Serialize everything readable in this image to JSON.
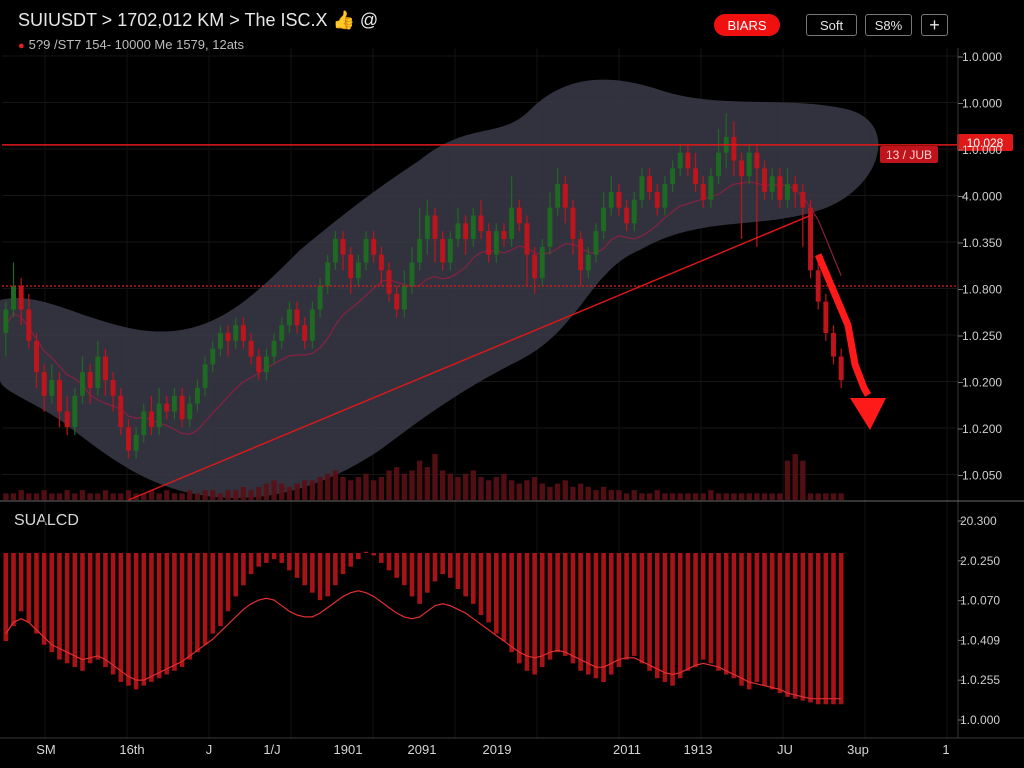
{
  "header": {
    "title": "SUIUSDT > 1702,012 KM > The ISC.X 👍 @",
    "subtitle": "5?9 /ST7 154- 10000 Me 1579, 12ats"
  },
  "toolbar": {
    "bears_label": "BIARS",
    "soft_label": "Soft",
    "pct_label": "S8%",
    "plus_label": "+"
  },
  "indicator": {
    "label": "SUALCD"
  },
  "colors": {
    "background": "#000000",
    "bear": "#c0141c",
    "bull": "#1f6a22",
    "resistance": "#e01818",
    "zone": "#3a3b48",
    "arrow": "#ff1a1a",
    "ma": "#8a2040"
  },
  "level_tags": {
    "left": "13 / JUB",
    "right": "10.028"
  },
  "chart_data": {
    "type": "candlestick",
    "price_axis": {
      "ticks": [
        "1.0.000",
        "1.0.000",
        "1.0.000",
        "4.0.000",
        "1.0.350",
        "1.0.800",
        "1.0.250",
        "1.0.200",
        "1.0.200",
        "1.0.050"
      ],
      "ylim": [
        0,
        100
      ]
    },
    "indicator_axis": {
      "ticks": [
        "20.300",
        "2.0.250",
        "1.0.070",
        "1.0.409",
        "1.0.255",
        "1.0.000"
      ],
      "ylim": [
        0,
        100
      ]
    },
    "x_ticks": [
      "SM",
      "16th",
      "J",
      "1/J",
      "1901",
      "2091",
      "2019",
      "2011",
      "1913",
      "JU",
      "3up",
      "1"
    ],
    "resistance_level": 86,
    "support_level": 50,
    "candles": [
      [
        38,
        44,
        32,
        46
      ],
      [
        44,
        50,
        42,
        56
      ],
      [
        50,
        44,
        40,
        52
      ],
      [
        44,
        36,
        34,
        48
      ],
      [
        36,
        28,
        24,
        38
      ],
      [
        28,
        22,
        18,
        30
      ],
      [
        22,
        26,
        20,
        30
      ],
      [
        26,
        18,
        14,
        28
      ],
      [
        18,
        14,
        12,
        22
      ],
      [
        14,
        22,
        12,
        24
      ],
      [
        22,
        28,
        20,
        32
      ],
      [
        28,
        24,
        20,
        30
      ],
      [
        24,
        32,
        22,
        36
      ],
      [
        32,
        26,
        22,
        34
      ],
      [
        26,
        22,
        18,
        28
      ],
      [
        22,
        14,
        12,
        24
      ],
      [
        14,
        8,
        6,
        16
      ],
      [
        8,
        12,
        6,
        14
      ],
      [
        12,
        18,
        10,
        20
      ],
      [
        18,
        14,
        12,
        22
      ],
      [
        14,
        20,
        12,
        24
      ],
      [
        20,
        18,
        16,
        22
      ],
      [
        18,
        22,
        16,
        24
      ],
      [
        22,
        16,
        14,
        24
      ],
      [
        16,
        20,
        14,
        22
      ],
      [
        20,
        24,
        18,
        26
      ],
      [
        24,
        30,
        22,
        32
      ],
      [
        30,
        34,
        28,
        36
      ],
      [
        34,
        38,
        32,
        40
      ],
      [
        38,
        36,
        32,
        40
      ],
      [
        36,
        40,
        34,
        42
      ],
      [
        40,
        36,
        34,
        42
      ],
      [
        36,
        32,
        30,
        38
      ],
      [
        32,
        28,
        26,
        34
      ],
      [
        28,
        32,
        26,
        34
      ],
      [
        32,
        36,
        30,
        38
      ],
      [
        36,
        40,
        34,
        42
      ],
      [
        40,
        44,
        38,
        46
      ],
      [
        44,
        40,
        38,
        46
      ],
      [
        40,
        36,
        34,
        42
      ],
      [
        36,
        44,
        34,
        46
      ],
      [
        44,
        50,
        42,
        52
      ],
      [
        50,
        56,
        48,
        58
      ],
      [
        56,
        62,
        54,
        64
      ],
      [
        62,
        58,
        54,
        64
      ],
      [
        58,
        52,
        48,
        60
      ],
      [
        52,
        56,
        50,
        58
      ],
      [
        56,
        62,
        54,
        64
      ],
      [
        62,
        58,
        56,
        64
      ],
      [
        58,
        54,
        50,
        60
      ],
      [
        54,
        48,
        46,
        56
      ],
      [
        48,
        44,
        42,
        50
      ],
      [
        44,
        50,
        42,
        54
      ],
      [
        50,
        56,
        48,
        60
      ],
      [
        56,
        62,
        54,
        70
      ],
      [
        62,
        68,
        58,
        72
      ],
      [
        68,
        62,
        56,
        70
      ],
      [
        62,
        56,
        54,
        64
      ],
      [
        56,
        62,
        54,
        64
      ],
      [
        62,
        66,
        60,
        70
      ],
      [
        66,
        62,
        58,
        68
      ],
      [
        62,
        68,
        60,
        70
      ],
      [
        68,
        64,
        62,
        72
      ],
      [
        64,
        58,
        56,
        66
      ],
      [
        58,
        64,
        56,
        66
      ],
      [
        64,
        62,
        60,
        66
      ],
      [
        62,
        70,
        60,
        78
      ],
      [
        70,
        66,
        64,
        72
      ],
      [
        66,
        58,
        50,
        68
      ],
      [
        58,
        52,
        48,
        60
      ],
      [
        52,
        60,
        50,
        62
      ],
      [
        60,
        70,
        58,
        74
      ],
      [
        70,
        76,
        68,
        80
      ],
      [
        76,
        70,
        66,
        78
      ],
      [
        70,
        62,
        58,
        72
      ],
      [
        62,
        54,
        50,
        64
      ],
      [
        54,
        58,
        52,
        60
      ],
      [
        58,
        64,
        56,
        66
      ],
      [
        64,
        70,
        62,
        74
      ],
      [
        70,
        74,
        68,
        78
      ],
      [
        74,
        70,
        68,
        76
      ],
      [
        70,
        66,
        64,
        72
      ],
      [
        66,
        72,
        64,
        74
      ],
      [
        72,
        78,
        70,
        80
      ],
      [
        78,
        74,
        72,
        80
      ],
      [
        74,
        70,
        68,
        76
      ],
      [
        70,
        76,
        68,
        78
      ],
      [
        76,
        80,
        74,
        82
      ],
      [
        80,
        84,
        78,
        86
      ],
      [
        84,
        80,
        78,
        86
      ],
      [
        80,
        76,
        74,
        84
      ],
      [
        76,
        72,
        70,
        78
      ],
      [
        72,
        78,
        70,
        80
      ],
      [
        78,
        84,
        76,
        90
      ],
      [
        84,
        88,
        80,
        94
      ],
      [
        88,
        82,
        78,
        92
      ],
      [
        82,
        78,
        62,
        84
      ],
      [
        78,
        84,
        76,
        86
      ],
      [
        84,
        80,
        60,
        86
      ],
      [
        80,
        74,
        72,
        82
      ],
      [
        74,
        78,
        72,
        80
      ],
      [
        78,
        72,
        70,
        80
      ],
      [
        72,
        76,
        70,
        80
      ],
      [
        76,
        74,
        70,
        78
      ],
      [
        74,
        70,
        60,
        76
      ],
      [
        70,
        54,
        52,
        72
      ],
      [
        54,
        46,
        44,
        56
      ],
      [
        46,
        38,
        36,
        48
      ],
      [
        38,
        32,
        30,
        40
      ],
      [
        32,
        26,
        24,
        34
      ]
    ],
    "volume": [
      2,
      2,
      3,
      2,
      2,
      3,
      2,
      2,
      3,
      2,
      3,
      2,
      2,
      3,
      2,
      2,
      3,
      2,
      2,
      3,
      2,
      3,
      2,
      2,
      3,
      2,
      3,
      3,
      2,
      3,
      3,
      4,
      3,
      4,
      5,
      6,
      5,
      4,
      5,
      6,
      6,
      7,
      8,
      9,
      7,
      6,
      7,
      8,
      6,
      7,
      9,
      10,
      8,
      9,
      12,
      10,
      14,
      9,
      8,
      7,
      8,
      9,
      7,
      6,
      7,
      8,
      6,
      5,
      6,
      7,
      5,
      4,
      5,
      6,
      4,
      5,
      4,
      3,
      4,
      3,
      3,
      2,
      3,
      2,
      2,
      3,
      2,
      2,
      2,
      2,
      2,
      2,
      3,
      2,
      2,
      2,
      2,
      2,
      2,
      2,
      2,
      2,
      12,
      14,
      12,
      2,
      2,
      2,
      2,
      2
    ],
    "histogram": [
      36,
      44,
      52,
      46,
      40,
      34,
      30,
      26,
      24,
      22,
      20,
      24,
      26,
      22,
      18,
      14,
      12,
      10,
      12,
      14,
      16,
      18,
      20,
      22,
      26,
      30,
      34,
      40,
      44,
      52,
      60,
      66,
      72,
      76,
      78,
      80,
      78,
      74,
      70,
      66,
      62,
      58,
      60,
      66,
      72,
      76,
      80,
      84,
      82,
      78,
      74,
      70,
      66,
      60,
      56,
      62,
      68,
      72,
      70,
      64,
      60,
      56,
      50,
      46,
      40,
      36,
      30,
      24,
      20,
      18,
      22,
      26,
      30,
      28,
      24,
      20,
      18,
      16,
      14,
      18,
      22,
      26,
      28,
      24,
      20,
      16,
      14,
      12,
      16,
      20,
      22,
      26,
      24,
      20,
      18,
      16,
      12,
      10,
      14,
      12,
      10,
      8,
      6,
      5,
      4,
      3,
      2,
      2,
      2,
      2
    ],
    "signal": [
      40,
      46,
      48,
      46,
      42,
      38,
      34,
      32,
      30,
      28,
      26,
      27,
      28,
      26,
      23,
      20,
      17,
      15,
      15,
      17,
      19,
      21,
      23,
      25,
      28,
      31,
      34,
      37,
      41,
      45,
      49,
      53,
      56,
      58,
      59,
      58,
      55,
      52,
      50,
      49,
      49,
      51,
      54,
      57,
      60,
      62,
      63,
      62,
      60,
      57,
      54,
      51,
      49,
      48,
      49,
      52,
      55,
      56,
      55,
      53,
      51,
      48,
      45,
      42,
      39,
      36,
      33,
      30,
      28,
      27,
      28,
      30,
      31,
      30,
      28,
      26,
      24,
      22,
      22,
      24,
      26,
      27,
      27,
      25,
      23,
      21,
      19,
      18,
      19,
      21,
      23,
      24,
      23,
      22,
      20,
      18,
      16,
      14,
      13,
      12,
      11,
      10,
      8,
      7,
      6,
      5,
      5,
      5,
      5,
      5
    ]
  }
}
